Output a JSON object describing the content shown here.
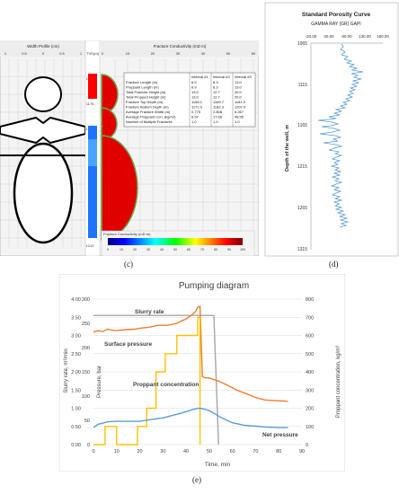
{
  "panel_labels": {
    "c": "(c)",
    "d": "(d)",
    "e": "(e)"
  },
  "panel_c": {
    "width_profile_title": "Width Profile (cm)",
    "width_ticks": [
      "1",
      "0.5",
      "0",
      "0.5",
      "1"
    ],
    "tvd_header": "TVD(m)",
    "depths": [
      "1150",
      "1175",
      "1200",
      "1210"
    ],
    "conductivity_title": "Fracture Conductivity (mD m)",
    "conductivity_ticks": [
      "0",
      "10",
      "20",
      "30",
      "40",
      "50",
      "60"
    ],
    "colorbar_title": "Fracture Conductivity (mD·m)",
    "colorbar_ticks": [
      "0",
      "10",
      "20",
      "30",
      "40",
      "50",
      "60",
      "70",
      "80",
      "90",
      "100"
    ],
    "table": {
      "headers": [
        "",
        "Interval #1",
        "Interval #2",
        "Interval #3"
      ],
      "rows": [
        [
          "Fracture Length (m)",
          "6.9",
          "6.3",
          "13.0"
        ],
        [
          "Proppant Length (m)",
          "6.9",
          "6.3",
          "13.0"
        ],
        [
          "Total Fracture Height (m)",
          "13.0",
          "12.7",
          "26.0"
        ],
        [
          "Total Propped Height (m)",
          "13.0",
          "12.7",
          "26.0"
        ],
        [
          "Fracture Top Depth (m)",
          "1158.1",
          "1169.7",
          "1181.0"
        ],
        [
          "Fracture Bottom Depth (m)",
          "1171.0",
          "1182.3",
          "1207.0"
        ],
        [
          "Average Fracture Width (m)",
          "0.775",
          "2.808",
          "6.267"
        ],
        [
          "Average Proppant Con. (kg/m²)",
          "6.57",
          "17.66",
          "48.95"
        ],
        [
          "Number of Multiple Fractures",
          "1.0",
          "1.0",
          "1.0"
        ]
      ]
    }
  },
  "panel_d": {
    "title": "Standard Porosity Curve",
    "subtitle": "GAMMA RAY (GR) GAPI",
    "ylabel": "Depth of the well, m",
    "x_ticks": [
      "-20.00",
      "30.00",
      "80.00",
      "130.00",
      "180.00"
    ],
    "y_ticks": [
      "1065",
      "1115",
      "1165",
      "1215",
      "1265",
      "1315"
    ],
    "color": "#5b9bd5"
  },
  "chart_data": {
    "type": "line",
    "title": "Pumping diagram",
    "xlabel": "Time, min",
    "ylabel_left_outer": "Slurry rate, m³/min",
    "ylabel_left_inner": "Pressure, bar",
    "ylabel_right": "Proppant concentration, kg/m³",
    "x_ticks": [
      "0",
      "10",
      "20",
      "30",
      "40",
      "50",
      "60",
      "70",
      "80",
      "90"
    ],
    "xlim": [
      0,
      90
    ],
    "y_outer_ticks": [
      "0.00",
      "0.50",
      "1.00",
      "1.50",
      "2.00",
      "2.50",
      "3.00",
      "3.50",
      "4.00"
    ],
    "y_inner_ticks": [
      "0",
      "50",
      "100",
      "150",
      "200",
      "250",
      "300"
    ],
    "y_right_ticks": [
      "0",
      "100",
      "200",
      "300",
      "400",
      "500",
      "600",
      "700",
      "800"
    ],
    "annotations": [
      "Slurry rate",
      "Surface pressure",
      "Proppant concentration",
      "Net pressure"
    ],
    "series": [
      {
        "name": "Slurry rate",
        "axis": "outer",
        "color": "#a6a6a6",
        "points": [
          [
            0,
            3.55
          ],
          [
            52,
            3.55
          ],
          [
            54,
            0
          ]
        ]
      },
      {
        "name": "Surface pressure",
        "axis": "inner",
        "color": "#ed7d31",
        "points": [
          [
            0,
            232
          ],
          [
            2,
            235
          ],
          [
            4,
            233
          ],
          [
            6,
            238
          ],
          [
            8,
            236
          ],
          [
            10,
            235
          ],
          [
            14,
            237
          ],
          [
            18,
            238
          ],
          [
            20,
            240
          ],
          [
            24,
            242
          ],
          [
            28,
            246
          ],
          [
            32,
            246
          ],
          [
            36,
            250
          ],
          [
            38,
            255
          ],
          [
            40,
            259
          ],
          [
            42,
            266
          ],
          [
            44,
            274
          ],
          [
            45,
            283
          ],
          [
            46,
            285
          ],
          [
            47,
            140
          ],
          [
            48,
            138
          ],
          [
            50,
            137
          ],
          [
            54,
            131
          ],
          [
            58,
            122
          ],
          [
            62,
            112
          ],
          [
            66,
            105
          ],
          [
            70,
            97
          ],
          [
            74,
            92
          ],
          [
            78,
            91
          ],
          [
            82,
            90
          ],
          [
            84,
            89
          ]
        ]
      },
      {
        "name": "Proppant concentration",
        "axis": "right",
        "color": "#ffc000",
        "points": [
          [
            0,
            0
          ],
          [
            5,
            0
          ],
          [
            5,
            100
          ],
          [
            10,
            100
          ],
          [
            10,
            0
          ],
          [
            19,
            0
          ],
          [
            19,
            100
          ],
          [
            23,
            100
          ],
          [
            23,
            200
          ],
          [
            27,
            200
          ],
          [
            27,
            400
          ],
          [
            31,
            400
          ],
          [
            31,
            500
          ],
          [
            36,
            500
          ],
          [
            36,
            600
          ],
          [
            45,
            600
          ],
          [
            45,
            700
          ],
          [
            46,
            700
          ],
          [
            46,
            0
          ]
        ]
      },
      {
        "name": "Net pressure",
        "axis": "inner",
        "color": "#5b9bd5",
        "points": [
          [
            0,
            35
          ],
          [
            2,
            42
          ],
          [
            4,
            44
          ],
          [
            6,
            47
          ],
          [
            10,
            48
          ],
          [
            15,
            48
          ],
          [
            20,
            48
          ],
          [
            25,
            52
          ],
          [
            30,
            55
          ],
          [
            34,
            60
          ],
          [
            38,
            65
          ],
          [
            42,
            71
          ],
          [
            45,
            75
          ],
          [
            47,
            74
          ],
          [
            50,
            70
          ],
          [
            55,
            56
          ],
          [
            60,
            45
          ],
          [
            65,
            40
          ],
          [
            70,
            38
          ],
          [
            75,
            36
          ],
          [
            80,
            35
          ],
          [
            84,
            35
          ]
        ]
      }
    ]
  }
}
